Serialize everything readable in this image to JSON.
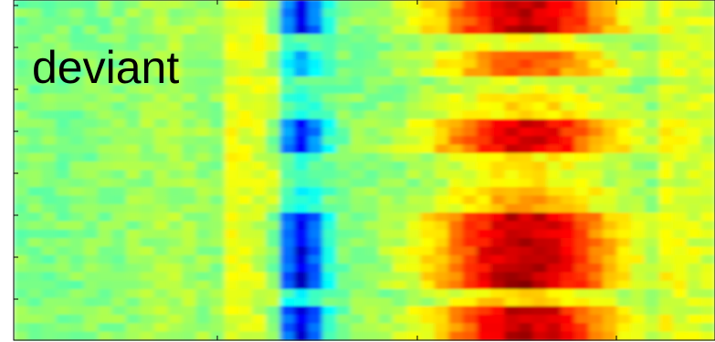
{
  "chart_data": {
    "type": "heatmap",
    "label": "deviant",
    "colormap": "jet",
    "value_range": [
      -1,
      1
    ],
    "grid": false,
    "columns": 50,
    "rows": 40,
    "row_profiles": [
      {
        "rows": [
          0,
          3
        ],
        "blue_strength": 0.9,
        "red_strength": 0.95
      },
      {
        "rows": [
          4,
          5
        ],
        "blue_strength": 0.1,
        "red_strength": 0.25
      },
      {
        "rows": [
          6,
          8
        ],
        "blue_strength": 0.45,
        "red_strength": 0.6
      },
      {
        "rows": [
          9,
          10
        ],
        "blue_strength": 0.1,
        "red_strength": 0.2
      },
      {
        "rows": [
          11,
          13
        ],
        "blue_strength": 0.2,
        "red_strength": 0.35
      },
      {
        "rows": [
          14,
          17
        ],
        "blue_strength": 0.85,
        "red_strength": 0.9
      },
      {
        "rows": [
          18,
          21
        ],
        "blue_strength": 0.15,
        "red_strength": 0.3
      },
      {
        "rows": [
          22,
          24
        ],
        "blue_strength": 0.3,
        "red_strength": 0.45
      },
      {
        "rows": [
          25,
          28
        ],
        "blue_strength": 0.95,
        "red_strength": 0.95
      },
      {
        "rows": [
          29,
          33
        ],
        "blue_strength": 1.0,
        "red_strength": 1.0
      },
      {
        "rows": [
          34,
          35
        ],
        "blue_strength": 0.3,
        "red_strength": 0.4
      },
      {
        "rows": [
          36,
          39
        ],
        "blue_strength": 0.95,
        "red_strength": 0.95
      }
    ],
    "features": {
      "blue_center_col": 20,
      "red_center_col": 30,
      "yellow_band_cols": [
        15,
        18
      ]
    }
  }
}
